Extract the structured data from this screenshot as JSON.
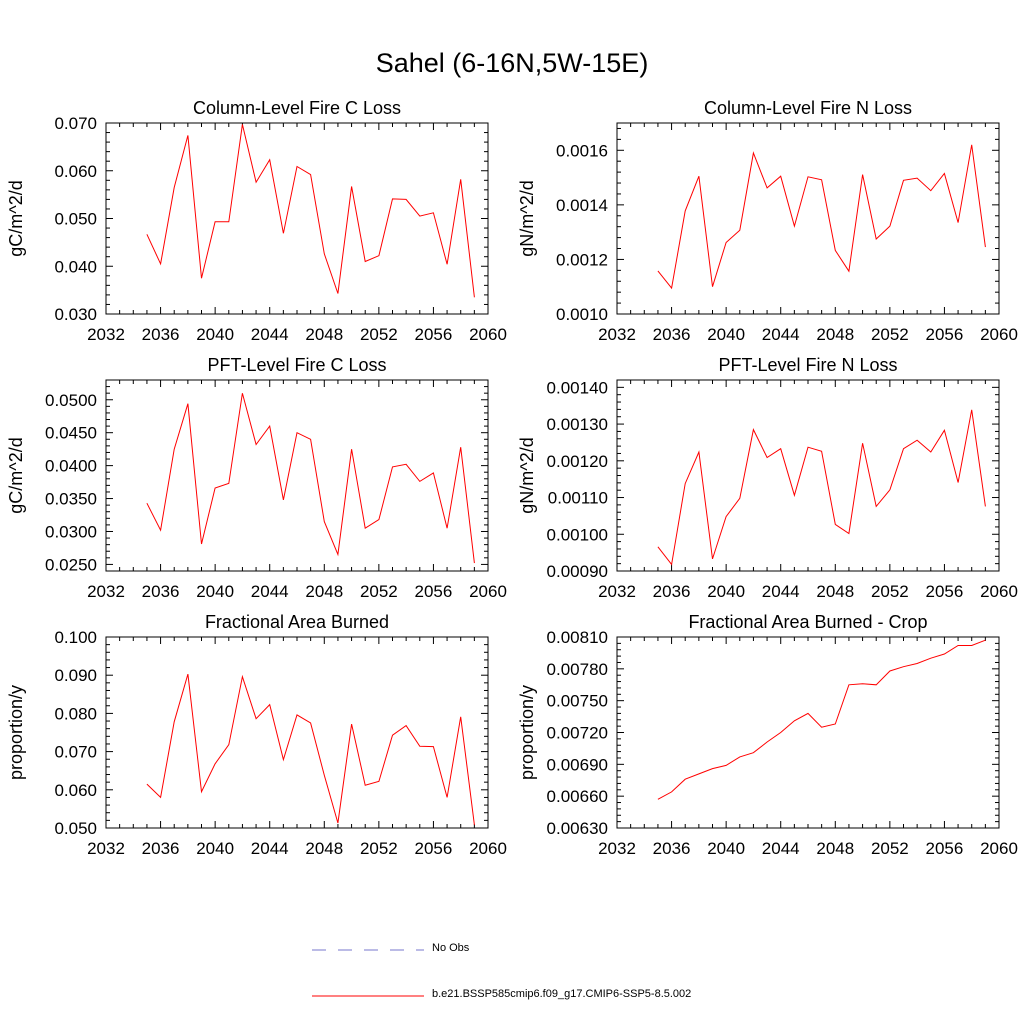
{
  "title": "Sahel (6-16N,5W-15E)",
  "colors": {
    "model_line": "#ff0000",
    "obs_line": "#7777cc",
    "axis": "#000000"
  },
  "legend": [
    {
      "label": "No Obs",
      "style": "dashed",
      "color": "#7777cc"
    },
    {
      "label": "b.e21.BSSP585cmip6.f09_g17.CMIP6-SSP5-8.5.002",
      "style": "solid",
      "color": "#ff0000"
    }
  ],
  "chart_data": [
    {
      "type": "line",
      "title": "Column-Level Fire C Loss",
      "ylabel": "gC/m^2/d",
      "xlim": [
        2032,
        2060
      ],
      "ylim": [
        0.03,
        0.07
      ],
      "xticks": [
        "2032",
        "2036",
        "2040",
        "2044",
        "2048",
        "2052",
        "2056",
        "2060"
      ],
      "yticks": [
        "0.030",
        "0.040",
        "0.050",
        "0.060",
        "0.070"
      ],
      "x": [
        2035,
        2036,
        2037,
        2038,
        2039,
        2040,
        2041,
        2042,
        2043,
        2044,
        2045,
        2046,
        2047,
        2048,
        2049,
        2050,
        2051,
        2052,
        2053,
        2054,
        2055,
        2056,
        2057,
        2058,
        2059
      ],
      "series": [
        {
          "values": [
            0.0467,
            0.0405,
            0.0565,
            0.0674,
            0.0375,
            0.0493,
            0.0493,
            0.0697,
            0.0576,
            0.0623,
            0.0469,
            0.0609,
            0.0592,
            0.0426,
            0.0343,
            0.0567,
            0.041,
            0.0422,
            0.0541,
            0.054,
            0.0505,
            0.0512,
            0.0404,
            0.0582,
            0.0335
          ]
        }
      ]
    },
    {
      "type": "line",
      "title": "Column-Level Fire N Loss",
      "ylabel": "gN/m^2/d",
      "xlim": [
        2032,
        2060
      ],
      "ylim": [
        0.001,
        0.0017
      ],
      "xticks": [
        "2032",
        "2036",
        "2040",
        "2044",
        "2048",
        "2052",
        "2056",
        "2060"
      ],
      "yticks": [
        "0.0010",
        "0.0012",
        "0.0014",
        "0.0016"
      ],
      "x": [
        2035,
        2036,
        2037,
        2038,
        2039,
        2040,
        2041,
        2042,
        2043,
        2044,
        2045,
        2046,
        2047,
        2048,
        2049,
        2050,
        2051,
        2052,
        2053,
        2054,
        2055,
        2056,
        2057,
        2058,
        2059
      ],
      "series": [
        {
          "values": [
            0.001158,
            0.001095,
            0.001378,
            0.001505,
            0.0011,
            0.001262,
            0.001307,
            0.00159,
            0.001462,
            0.001505,
            0.001322,
            0.001503,
            0.001492,
            0.001233,
            0.001157,
            0.001511,
            0.001275,
            0.001322,
            0.00149,
            0.001498,
            0.001452,
            0.001515,
            0.001335,
            0.00162,
            0.001245
          ]
        }
      ]
    },
    {
      "type": "line",
      "title": "PFT-Level Fire C Loss",
      "ylabel": "gC/m^2/d",
      "xlim": [
        2032,
        2060
      ],
      "ylim": [
        0.024,
        0.053
      ],
      "xticks": [
        "2032",
        "2036",
        "2040",
        "2044",
        "2048",
        "2052",
        "2056",
        "2060"
      ],
      "yticks": [
        "0.0250",
        "0.0300",
        "0.0350",
        "0.0400",
        "0.0450",
        "0.0500"
      ],
      "x": [
        2035,
        2036,
        2037,
        2038,
        2039,
        2040,
        2041,
        2042,
        2043,
        2044,
        2045,
        2046,
        2047,
        2048,
        2049,
        2050,
        2051,
        2052,
        2053,
        2054,
        2055,
        2056,
        2057,
        2058,
        2059
      ],
      "series": [
        {
          "values": [
            0.0343,
            0.0302,
            0.0425,
            0.0494,
            0.0281,
            0.0366,
            0.0373,
            0.051,
            0.0432,
            0.046,
            0.0348,
            0.045,
            0.044,
            0.0315,
            0.0265,
            0.0425,
            0.0305,
            0.0318,
            0.0398,
            0.0402,
            0.0376,
            0.0389,
            0.0305,
            0.0428,
            0.0252
          ]
        }
      ]
    },
    {
      "type": "line",
      "title": "PFT-Level Fire N Loss",
      "ylabel": "gN/m^2/d",
      "xlim": [
        2032,
        2060
      ],
      "ylim": [
        0.0009,
        0.00142
      ],
      "xticks": [
        "2032",
        "2036",
        "2040",
        "2044",
        "2048",
        "2052",
        "2056",
        "2060"
      ],
      "yticks": [
        "0.00090",
        "0.00100",
        "0.00110",
        "0.00120",
        "0.00130",
        "0.00140"
      ],
      "x": [
        2035,
        2036,
        2037,
        2038,
        2039,
        2040,
        2041,
        2042,
        2043,
        2044,
        2045,
        2046,
        2047,
        2048,
        2049,
        2050,
        2051,
        2052,
        2053,
        2054,
        2055,
        2056,
        2057,
        2058,
        2059
      ],
      "series": [
        {
          "values": [
            0.000966,
            0.000918,
            0.001138,
            0.001224,
            0.000933,
            0.001048,
            0.001098,
            0.001285,
            0.001209,
            0.001233,
            0.001106,
            0.001237,
            0.001226,
            0.001027,
            0.001002,
            0.001248,
            0.001076,
            0.001121,
            0.001233,
            0.001256,
            0.001224,
            0.001283,
            0.001141,
            0.001339,
            0.001076
          ]
        }
      ]
    },
    {
      "type": "line",
      "title": "Fractional Area Burned",
      "ylabel": "proportion/y",
      "xlim": [
        2032,
        2060
      ],
      "ylim": [
        0.05,
        0.1
      ],
      "xticks": [
        "2032",
        "2036",
        "2040",
        "2044",
        "2048",
        "2052",
        "2056",
        "2060"
      ],
      "yticks": [
        "0.050",
        "0.060",
        "0.070",
        "0.080",
        "0.090",
        "0.100"
      ],
      "x": [
        2035,
        2036,
        2037,
        2038,
        2039,
        2040,
        2041,
        2042,
        2043,
        2044,
        2045,
        2046,
        2047,
        2048,
        2049,
        2050,
        2051,
        2052,
        2053,
        2054,
        2055,
        2056,
        2057,
        2058,
        2059
      ],
      "series": [
        {
          "values": [
            0.0615,
            0.058,
            0.0778,
            0.0903,
            0.0595,
            0.0668,
            0.0718,
            0.0896,
            0.0786,
            0.0823,
            0.0679,
            0.0796,
            0.0775,
            0.0638,
            0.0513,
            0.0772,
            0.0612,
            0.0622,
            0.0743,
            0.0768,
            0.0714,
            0.0713,
            0.058,
            0.0791,
            0.0508
          ]
        }
      ]
    },
    {
      "type": "line",
      "title": "Fractional Area Burned - Crop",
      "ylabel": "proportion/y",
      "xlim": [
        2032,
        2060
      ],
      "ylim": [
        0.0063,
        0.0081
      ],
      "xticks": [
        "2032",
        "2036",
        "2040",
        "2044",
        "2048",
        "2052",
        "2056",
        "2060"
      ],
      "yticks": [
        "0.00630",
        "0.00660",
        "0.00690",
        "0.00720",
        "0.00750",
        "0.00780",
        "0.00810"
      ],
      "x": [
        2035,
        2036,
        2037,
        2038,
        2039,
        2040,
        2041,
        2042,
        2043,
        2044,
        2045,
        2046,
        2047,
        2048,
        2049,
        2050,
        2051,
        2052,
        2053,
        2054,
        2055,
        2056,
        2057,
        2058,
        2059
      ],
      "series": [
        {
          "values": [
            0.00657,
            0.00664,
            0.00676,
            0.00681,
            0.00686,
            0.00689,
            0.00697,
            0.00701,
            0.00711,
            0.0072,
            0.00731,
            0.00738,
            0.00725,
            0.00728,
            0.00765,
            0.00766,
            0.00765,
            0.00778,
            0.00782,
            0.00785,
            0.0079,
            0.00794,
            0.00802,
            0.00802,
            0.00807
          ]
        }
      ]
    }
  ]
}
